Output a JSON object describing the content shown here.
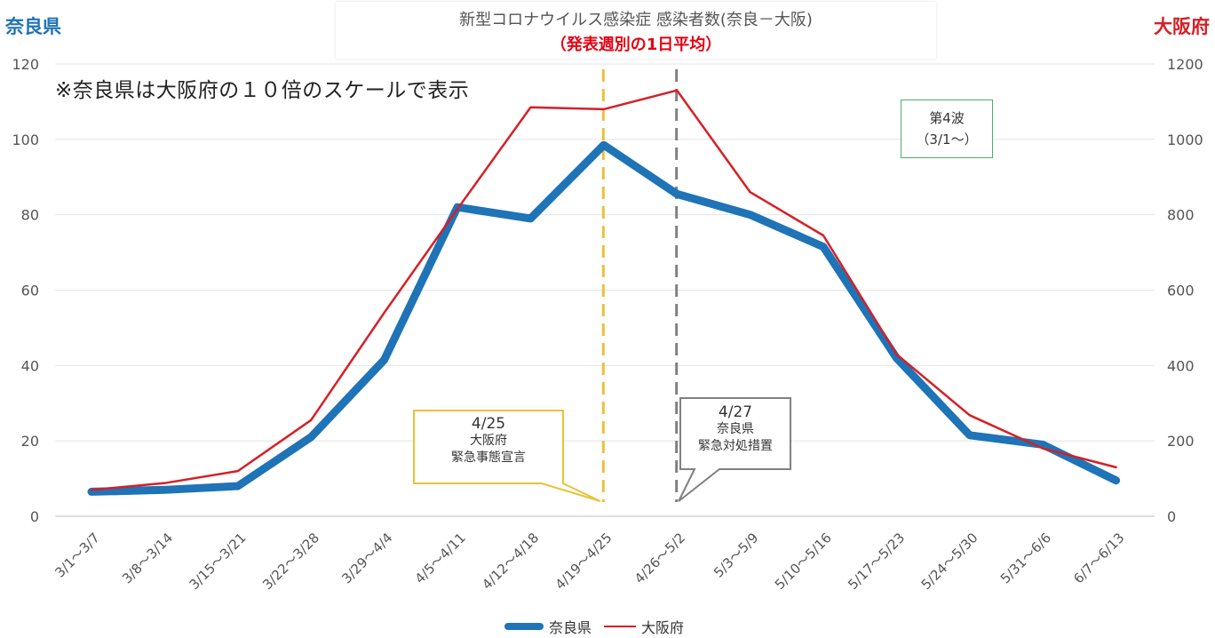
{
  "header": {
    "left_axis_title": "奈良県",
    "right_axis_title": "大阪府",
    "title_line1": "新型コロナウイルス感染症  感染者数(奈良－大阪)",
    "title_line2": "（発表週別の1日平均）"
  },
  "note": "※奈良県は大阪府の１０倍のスケールで表示",
  "wave_label": {
    "line1": "第4波",
    "line2": "（3/1～）"
  },
  "callouts": [
    {
      "date": "4/25",
      "line1": "大阪府",
      "line2": "緊急事態宣言",
      "color": "#e8c23a"
    },
    {
      "date": "4/27",
      "line1": "奈良県",
      "line2": "緊急対処措置",
      "color": "#808080"
    }
  ],
  "chart_data": {
    "type": "line",
    "categories": [
      "3/1～3/7",
      "3/8～3/14",
      "3/15～3/21",
      "3/22～3/28",
      "3/29～4/4",
      "4/5～4/11",
      "4/12～4/18",
      "4/19～4/25",
      "4/26～5/2",
      "5/3～5/9",
      "5/10～5/16",
      "5/17～5/23",
      "5/24～5/30",
      "5/31～6/6",
      "6/7～6/13"
    ],
    "series": [
      {
        "name": "奈良県",
        "axis": "left",
        "color": "#1f73b7",
        "values": [
          6.5,
          7,
          8,
          21,
          41.5,
          82,
          79,
          98.5,
          85.5,
          80,
          71.5,
          42,
          21.5,
          19,
          9.5
        ]
      },
      {
        "name": "大阪府",
        "axis": "right",
        "color": "#d61f26",
        "values": [
          70,
          88,
          120,
          255,
          540,
          815,
          1085,
          1080,
          1130,
          860,
          745,
          430,
          268,
          180,
          130
        ]
      }
    ],
    "left_axis": {
      "ylim": [
        0,
        120
      ],
      "ticks": [
        0,
        20,
        40,
        60,
        80,
        100,
        120
      ]
    },
    "right_axis": {
      "ylim": [
        0,
        1200
      ],
      "ticks": [
        0,
        200,
        400,
        600,
        800,
        1000,
        1200
      ]
    },
    "markers": [
      {
        "category": "4/19～4/25",
        "style": "dashed",
        "color": "#e8c23a"
      },
      {
        "category": "4/26～5/2",
        "style": "dashed",
        "color": "#808080"
      }
    ],
    "grid": "horizontal",
    "legend": "bottom-center"
  }
}
